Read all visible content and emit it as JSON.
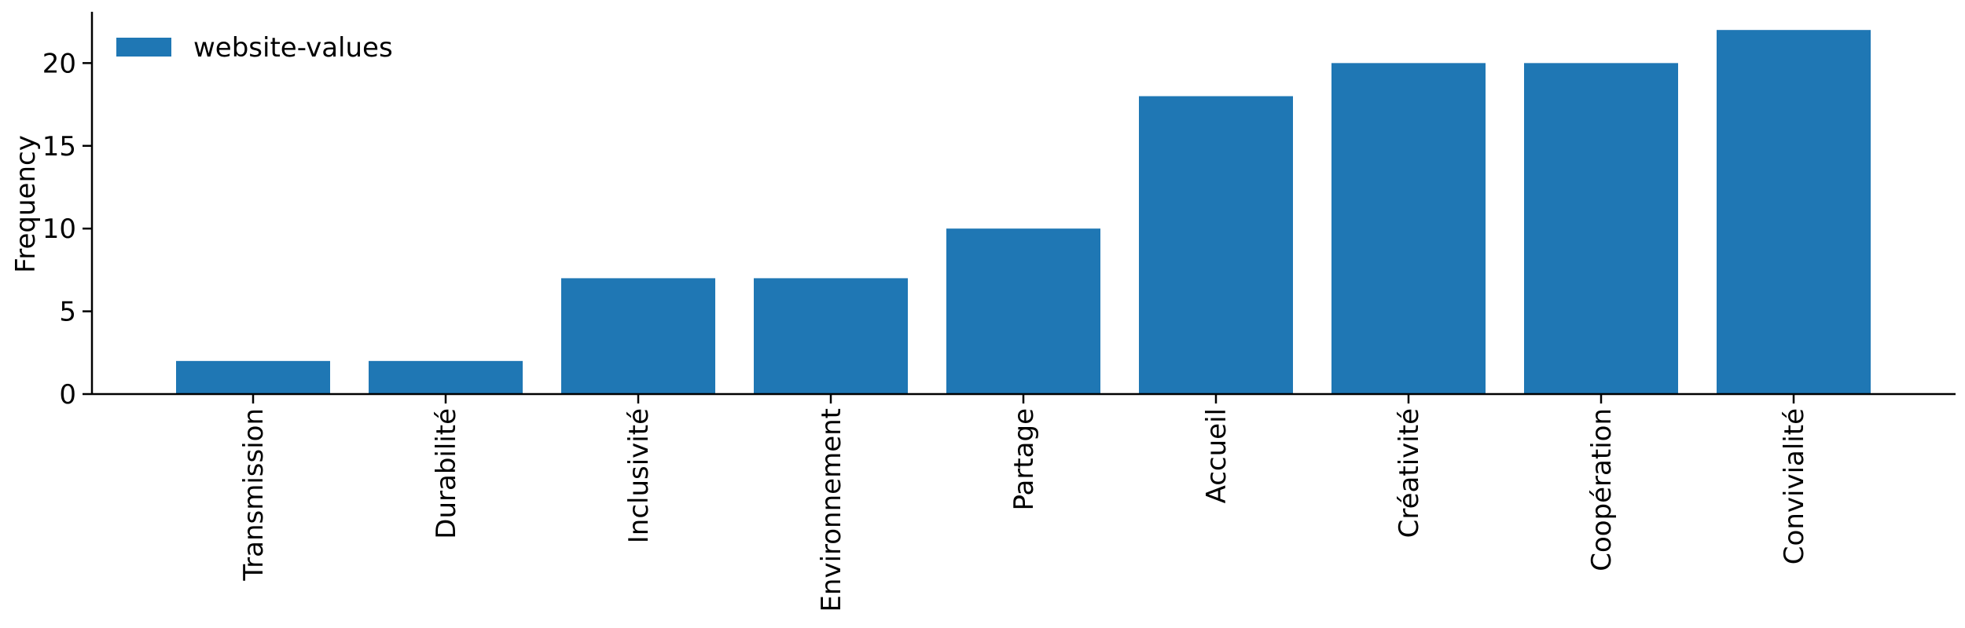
{
  "chart_data": {
    "type": "bar",
    "title": "",
    "xlabel": "",
    "ylabel": "Frequency",
    "categories": [
      "Transmission",
      "Durabilité",
      "Inclusivité",
      "Environnement",
      "Partage",
      "Accueil",
      "Créativité",
      "Coopération",
      "Convivialité"
    ],
    "series": [
      {
        "name": "website-values",
        "values": [
          2,
          2,
          7,
          7,
          10,
          18,
          20,
          20,
          22
        ],
        "color": "#1f77b4"
      }
    ],
    "ylim": [
      0,
      23.1
    ],
    "yticks": [
      0,
      5,
      10,
      15,
      20
    ],
    "grid": false,
    "legend_position": "top-left"
  }
}
